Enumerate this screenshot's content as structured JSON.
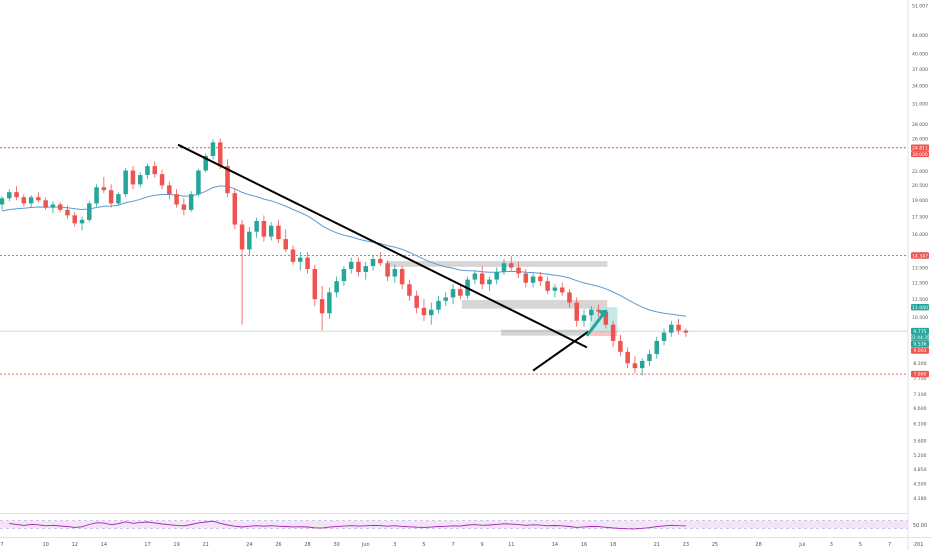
{
  "chart_data": {
    "type": "candlestick",
    "title": "",
    "xlabel": "",
    "ylabel": "",
    "y_scale": "log",
    "ylim": [
      3.9,
      51.5
    ],
    "grid": false,
    "legend": "none",
    "colors": {
      "up": "#26a69a",
      "down": "#ef5350",
      "ema": "#5b9bd5",
      "trendline": "#000000",
      "arrow": "#26a69a",
      "level_line": "#e05a47",
      "zone_grey": "#d6d6d6",
      "target_zone": "#b2dfdb",
      "stop_zone": "#f7c5c5",
      "rsi_line": "#9c27b0",
      "rsi_band": "#f3e5f5"
    },
    "y_ticks": [
      "51.007",
      "44.000",
      "40.000",
      "37.000",
      "34.000",
      "31.000",
      "28.000",
      "26.000",
      "24.000",
      "22.000",
      "20.500",
      "19.000",
      "17.500",
      "16.000",
      "14.500",
      "13.500",
      "12.500",
      "11.500",
      "10.500",
      "9.700",
      "8.900",
      "8.300",
      "7.700",
      "7.100",
      "6.600",
      "6.100",
      "5.600",
      "5.200",
      "4.850",
      "4.500",
      "4.180"
    ],
    "y_tick_values": [
      51.0,
      44.0,
      40.0,
      37.0,
      34.0,
      31.0,
      28.0,
      26.0,
      24.0,
      22.0,
      20.5,
      19.0,
      17.5,
      16.0,
      14.5,
      13.5,
      12.5,
      11.5,
      10.5,
      9.7,
      8.9,
      8.3,
      7.7,
      7.1,
      6.6,
      6.1,
      5.6,
      5.2,
      4.85,
      4.5,
      4.18
    ],
    "x_ticks": [
      "7",
      "10",
      "12",
      "14",
      "17",
      "19",
      "21",
      "24",
      "26",
      "28",
      "30",
      "Jun",
      "3",
      "5",
      "7",
      "9",
      "11",
      "14",
      "16",
      "18",
      "21",
      "23",
      "25",
      "28",
      "Jul",
      "3",
      "5",
      "7",
      "201"
    ],
    "x_tick_days": [
      7,
      10,
      12,
      14,
      17,
      19,
      21,
      24,
      26,
      28,
      30,
      32,
      34,
      36,
      38,
      40,
      42,
      45,
      47,
      49,
      52,
      54,
      56,
      59,
      62,
      64,
      66,
      68,
      70
    ],
    "horizontal_levels": [
      {
        "value": 24.811,
        "label": "24.811",
        "subtitle": "24.000"
      },
      {
        "value": 14.347,
        "label": "14.347"
      },
      {
        "value": 7.86,
        "label": "7.860"
      }
    ],
    "price_badges": [
      {
        "value": 11.04,
        "label": "11.040",
        "color": "#26a69a"
      },
      {
        "value": 9.775,
        "label": "9.775",
        "subtitle": "22:44:35",
        "color": "#26a69a"
      },
      {
        "value": 9.536,
        "label": "9.536",
        "color": "#26a69a"
      },
      {
        "value": 9.003,
        "label": "9.003",
        "color": "#ef5350"
      }
    ],
    "rsi": {
      "name": "",
      "band": [
        30,
        70
      ],
      "label": "50.00",
      "value": 50.0
    },
    "ohlc_day_start": 7,
    "ohlc_day_step": 0.5,
    "ohlc": [
      [
        18.6,
        19.4,
        18.1,
        19.2
      ],
      [
        19.2,
        20.1,
        18.9,
        19.8
      ],
      [
        19.8,
        20.4,
        19.0,
        19.3
      ],
      [
        19.3,
        19.6,
        18.4,
        18.7
      ],
      [
        18.7,
        19.5,
        18.3,
        19.3
      ],
      [
        19.3,
        19.8,
        18.8,
        19.0
      ],
      [
        19.0,
        19.3,
        18.1,
        18.3
      ],
      [
        18.3,
        18.9,
        17.8,
        18.6
      ],
      [
        18.6,
        18.8,
        17.9,
        18.1
      ],
      [
        18.1,
        18.5,
        17.3,
        17.6
      ],
      [
        17.6,
        17.9,
        16.6,
        16.9
      ],
      [
        16.9,
        17.5,
        16.3,
        17.2
      ],
      [
        17.2,
        18.9,
        17.0,
        18.7
      ],
      [
        18.7,
        20.6,
        18.4,
        20.3
      ],
      [
        20.3,
        21.4,
        19.7,
        20.0
      ],
      [
        20.0,
        20.6,
        18.3,
        18.7
      ],
      [
        18.7,
        19.8,
        18.5,
        19.6
      ],
      [
        19.6,
        22.4,
        19.3,
        22.1
      ],
      [
        22.1,
        22.6,
        20.1,
        20.6
      ],
      [
        20.6,
        21.9,
        20.3,
        21.6
      ],
      [
        21.6,
        22.9,
        21.2,
        22.6
      ],
      [
        22.6,
        23.1,
        21.3,
        21.7
      ],
      [
        21.7,
        22.2,
        20.1,
        20.5
      ],
      [
        20.5,
        20.9,
        19.1,
        19.6
      ],
      [
        19.6,
        20.1,
        18.3,
        18.6
      ],
      [
        18.6,
        19.2,
        17.6,
        18.1
      ],
      [
        18.1,
        19.9,
        17.9,
        19.6
      ],
      [
        19.6,
        22.3,
        19.4,
        22.1
      ],
      [
        22.1,
        24.1,
        21.9,
        23.8
      ],
      [
        23.8,
        25.9,
        23.4,
        25.5
      ],
      [
        25.5,
        26.0,
        22.3,
        22.6
      ],
      [
        22.6,
        23.4,
        19.3,
        19.7
      ],
      [
        19.7,
        20.2,
        16.4,
        16.8
      ],
      [
        16.8,
        17.2,
        10.1,
        14.8
      ],
      [
        14.8,
        16.6,
        14.4,
        16.2
      ],
      [
        16.2,
        17.4,
        15.7,
        17.1
      ],
      [
        17.1,
        17.6,
        15.4,
        15.8
      ],
      [
        15.8,
        17.0,
        15.5,
        16.7
      ],
      [
        16.7,
        17.2,
        15.3,
        15.6
      ],
      [
        15.6,
        16.4,
        14.6,
        14.8
      ],
      [
        14.8,
        15.1,
        13.7,
        13.9
      ],
      [
        13.9,
        14.6,
        13.3,
        14.2
      ],
      [
        14.2,
        14.6,
        13.1,
        13.4
      ],
      [
        13.4,
        13.7,
        11.1,
        11.5
      ],
      [
        11.5,
        12.3,
        9.8,
        10.7
      ],
      [
        10.7,
        12.2,
        10.4,
        11.9
      ],
      [
        11.9,
        12.9,
        11.6,
        12.6
      ],
      [
        12.6,
        13.6,
        12.3,
        13.4
      ],
      [
        13.4,
        14.2,
        13.1,
        13.9
      ],
      [
        13.9,
        14.2,
        12.9,
        13.2
      ],
      [
        13.2,
        13.9,
        12.7,
        13.6
      ],
      [
        13.6,
        14.4,
        13.3,
        14.1
      ],
      [
        14.1,
        14.6,
        13.6,
        13.8
      ],
      [
        13.8,
        14.0,
        12.6,
        12.9
      ],
      [
        12.9,
        13.7,
        12.5,
        13.4
      ],
      [
        13.4,
        13.6,
        12.1,
        12.4
      ],
      [
        12.4,
        12.7,
        11.4,
        11.7
      ],
      [
        11.7,
        12.0,
        10.7,
        11.0
      ],
      [
        11.0,
        11.5,
        10.3,
        10.6
      ],
      [
        10.6,
        11.3,
        10.1,
        10.9
      ],
      [
        10.9,
        11.7,
        10.7,
        11.4
      ],
      [
        11.4,
        11.9,
        11.1,
        11.6
      ],
      [
        11.6,
        12.4,
        11.2,
        12.1
      ],
      [
        12.1,
        12.4,
        11.5,
        11.7
      ],
      [
        11.7,
        12.9,
        11.5,
        12.7
      ],
      [
        12.7,
        13.3,
        12.4,
        13.1
      ],
      [
        13.1,
        13.6,
        12.1,
        12.4
      ],
      [
        12.4,
        12.9,
        12.0,
        12.7
      ],
      [
        12.7,
        13.5,
        12.4,
        13.2
      ],
      [
        13.2,
        14.1,
        13.0,
        13.8
      ],
      [
        13.8,
        14.3,
        13.3,
        13.5
      ],
      [
        13.5,
        13.9,
        12.8,
        13.1
      ],
      [
        13.1,
        13.4,
        12.2,
        12.5
      ],
      [
        12.5,
        13.1,
        12.2,
        12.9
      ],
      [
        12.9,
        13.2,
        12.3,
        12.6
      ],
      [
        12.6,
        12.9,
        11.8,
        12.0
      ],
      [
        12.0,
        12.4,
        11.6,
        12.2
      ],
      [
        12.2,
        12.5,
        11.7,
        11.9
      ],
      [
        11.9,
        12.1,
        11.0,
        11.3
      ],
      [
        11.3,
        11.6,
        10.0,
        10.3
      ],
      [
        10.3,
        10.9,
        10.0,
        10.6
      ],
      [
        10.6,
        11.1,
        10.3,
        10.9
      ],
      [
        10.9,
        11.2,
        10.5,
        10.8
      ],
      [
        10.8,
        10.9,
        9.9,
        10.1
      ],
      [
        10.1,
        10.3,
        9.0,
        9.3
      ],
      [
        9.3,
        9.6,
        8.6,
        8.8
      ],
      [
        8.8,
        9.0,
        8.1,
        8.3
      ],
      [
        8.3,
        8.6,
        7.9,
        8.1
      ],
      [
        8.1,
        8.5,
        7.8,
        8.4
      ],
      [
        8.4,
        8.9,
        8.2,
        8.7
      ],
      [
        8.7,
        9.5,
        8.5,
        9.3
      ],
      [
        9.3,
        9.9,
        9.1,
        9.7
      ],
      [
        9.7,
        10.3,
        9.5,
        10.1
      ],
      [
        10.1,
        10.4,
        9.6,
        9.8
      ],
      [
        9.8,
        9.9,
        9.5,
        9.7
      ]
    ]
  }
}
